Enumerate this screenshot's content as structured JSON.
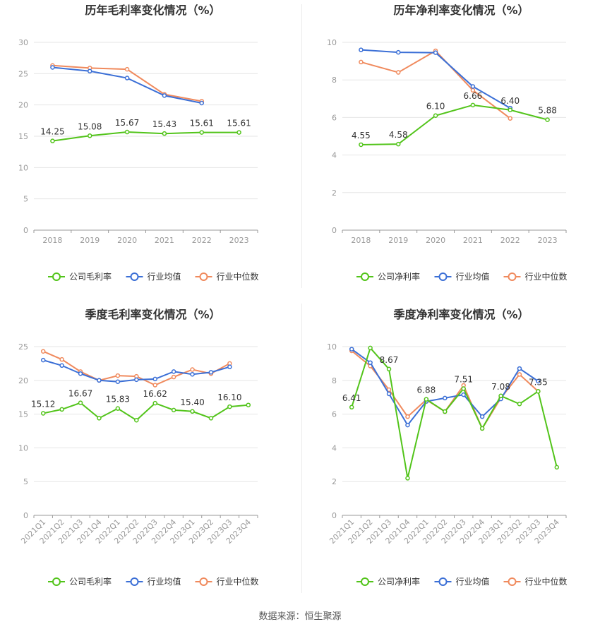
{
  "footer": {
    "source": "数据来源：恒生聚源"
  },
  "colors": {
    "company": "#52c41a",
    "industry_avg": "#3b6fd6",
    "industry_median": "#f08a5d",
    "grid": "#e6e6e6",
    "axis_text": "#999999",
    "label_text": "#333333",
    "title_text": "#333333"
  },
  "chart_data": [
    {
      "type": "line",
      "title": "历年毛利率变化情况（%）",
      "categories": [
        "2018",
        "2019",
        "2020",
        "2021",
        "2022",
        "2023"
      ],
      "ylim": [
        0,
        30
      ],
      "yticks": [
        0,
        5,
        10,
        15,
        20,
        25,
        30
      ],
      "grid": true,
      "legend_position": "bottom",
      "series": [
        {
          "name": "公司毛利率",
          "key": "company",
          "values": [
            14.25,
            15.08,
            15.67,
            15.43,
            15.61,
            15.61
          ],
          "labels": [
            "14.25",
            "15.08",
            "15.67",
            "15.43",
            "15.61",
            "15.61"
          ]
        },
        {
          "name": "行业均值",
          "key": "industry_avg",
          "values": [
            26.0,
            25.4,
            24.3,
            21.5,
            20.3,
            null
          ]
        },
        {
          "name": "行业中位数",
          "key": "industry_median",
          "values": [
            26.3,
            25.9,
            25.7,
            21.7,
            20.6,
            null
          ]
        }
      ]
    },
    {
      "type": "line",
      "title": "历年净利率变化情况（%）",
      "categories": [
        "2018",
        "2019",
        "2020",
        "2021",
        "2022",
        "2023"
      ],
      "ylim": [
        0,
        10
      ],
      "yticks": [
        0,
        2,
        4,
        6,
        8,
        10
      ],
      "grid": true,
      "legend_position": "bottom",
      "series": [
        {
          "name": "公司净利率",
          "key": "company",
          "values": [
            4.55,
            4.58,
            6.1,
            6.66,
            6.4,
            5.88
          ],
          "labels": [
            "4.55",
            "4.58",
            "6.10",
            "6.66",
            "6.40",
            "5.88"
          ]
        },
        {
          "name": "行业均值",
          "key": "industry_avg",
          "values": [
            9.6,
            9.47,
            9.45,
            7.65,
            6.5,
            null
          ]
        },
        {
          "name": "行业中位数",
          "key": "industry_median",
          "values": [
            8.95,
            8.4,
            9.55,
            7.45,
            5.95,
            null
          ]
        }
      ]
    },
    {
      "type": "line",
      "title": "季度毛利率变化情况（%）",
      "categories": [
        "2021Q1",
        "2021Q2",
        "2021Q3",
        "2021Q4",
        "2022Q1",
        "2022Q2",
        "2022Q3",
        "2022Q4",
        "2023Q1",
        "2023Q2",
        "2023Q3",
        "2023Q4"
      ],
      "ylim": [
        0,
        25
      ],
      "yticks": [
        0,
        5,
        10,
        15,
        20,
        25
      ],
      "grid": true,
      "legend_position": "bottom",
      "series": [
        {
          "name": "公司毛利率",
          "key": "company",
          "values": [
            15.12,
            15.7,
            16.67,
            14.4,
            15.83,
            14.1,
            16.62,
            15.6,
            15.4,
            14.4,
            16.1,
            16.35
          ],
          "labels": [
            "15.12",
            "",
            "16.67",
            "",
            "15.83",
            "",
            "16.62",
            "",
            "15.40",
            "",
            "16.10",
            ""
          ]
        },
        {
          "name": "行业均值",
          "key": "industry_avg",
          "values": [
            23.0,
            22.2,
            21.0,
            20.0,
            19.8,
            20.1,
            20.2,
            21.3,
            20.9,
            21.2,
            22.0,
            null
          ]
        },
        {
          "name": "行业中位数",
          "key": "industry_median",
          "values": [
            24.3,
            23.1,
            21.3,
            20.0,
            20.7,
            20.6,
            19.3,
            20.5,
            21.6,
            21.0,
            22.5,
            null
          ]
        }
      ]
    },
    {
      "type": "line",
      "title": "季度净利率变化情况（%）",
      "categories": [
        "2021Q1",
        "2021Q2",
        "2021Q3",
        "2021Q4",
        "2022Q1",
        "2022Q2",
        "2022Q3",
        "2022Q4",
        "2023Q1",
        "2023Q2",
        "2023Q3",
        "2023Q4"
      ],
      "ylim": [
        0,
        10
      ],
      "yticks": [
        0,
        2,
        4,
        6,
        8,
        10
      ],
      "grid": true,
      "legend_position": "bottom",
      "series": [
        {
          "name": "公司净利率",
          "key": "company",
          "values": [
            6.41,
            9.92,
            8.67,
            2.2,
            6.88,
            6.15,
            7.51,
            5.15,
            7.08,
            6.6,
            7.35,
            2.85
          ],
          "labels": [
            "6.41",
            "",
            "8.67",
            "",
            "6.88",
            "",
            "7.51",
            "",
            "7.08",
            "",
            "7.35",
            ""
          ]
        },
        {
          "name": "行业均值",
          "key": "industry_avg",
          "values": [
            9.85,
            9.05,
            7.2,
            5.35,
            6.75,
            6.95,
            7.15,
            5.85,
            6.9,
            8.7,
            7.95,
            null
          ]
        },
        {
          "name": "行业中位数",
          "key": "industry_median",
          "values": [
            9.75,
            8.85,
            7.45,
            5.85,
            6.85,
            6.15,
            7.7,
            5.15,
            6.95,
            8.35,
            7.35,
            null
          ]
        }
      ]
    }
  ]
}
